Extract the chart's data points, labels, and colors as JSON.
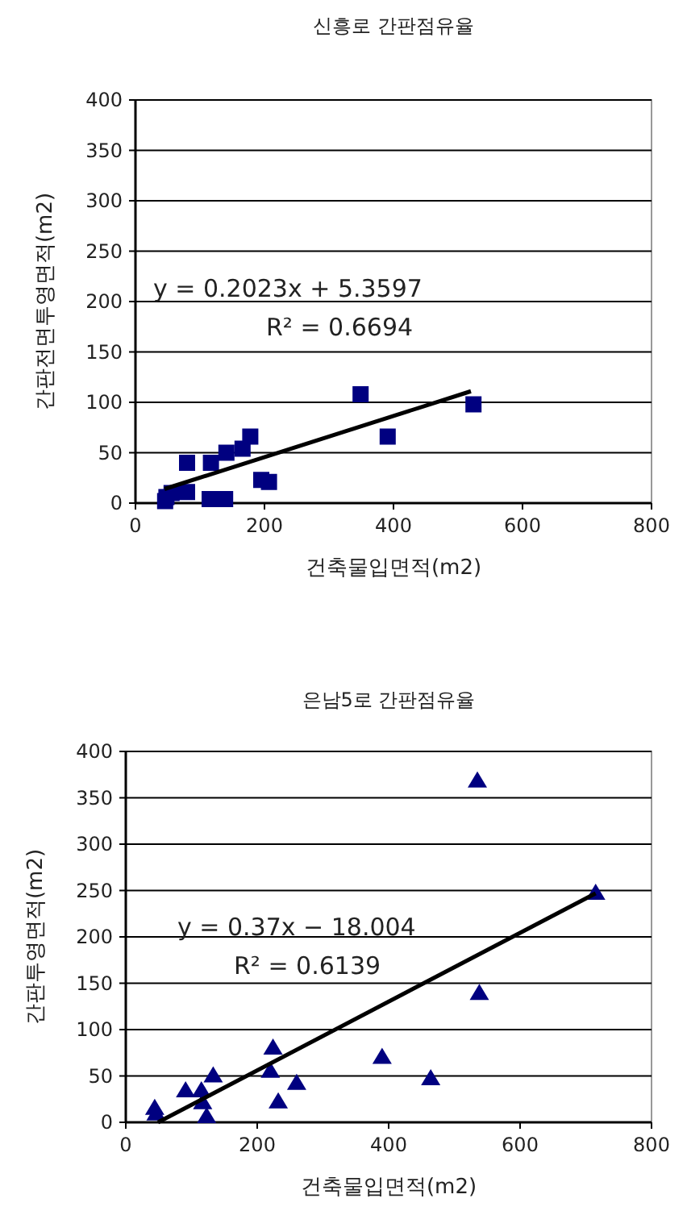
{
  "chart_data": [
    {
      "type": "scatter",
      "title": "신흥로 간판점유율",
      "xlabel": "건축물입면적(m2)",
      "ylabel": "간판전면투영면적(m2)",
      "xlim": [
        0,
        800
      ],
      "xticks": [
        0,
        200,
        400,
        600,
        800
      ],
      "ylim": [
        0,
        400
      ],
      "yticks": [
        0,
        50,
        100,
        150,
        200,
        250,
        300,
        350,
        400
      ],
      "grid": "y",
      "annotations": [
        "y  = 0.2023x + 5.3597",
        "R² = 0.6694"
      ],
      "series": [
        {
          "color": "#000080",
          "marker": "square",
          "x": [
            46,
            48,
            56,
            80,
            80,
            117,
            115,
            139,
            141,
            166,
            178,
            195,
            207,
            349,
            391,
            524
          ],
          "values": [
            2,
            6,
            10,
            11,
            40,
            40,
            4,
            4,
            50,
            54,
            66,
            23,
            21,
            108,
            66,
            98
          ]
        },
        {
          "type": "line",
          "color": "#000000",
          "marker": "none",
          "x": [
            45,
            520
          ],
          "values": [
            14,
            111
          ]
        }
      ]
    },
    {
      "type": "scatter",
      "title": "은남5로 간판점유율",
      "xlabel": "건축물입면적(m2)",
      "ylabel": "간판투영면적(m2)",
      "xlim": [
        0,
        800
      ],
      "xticks": [
        0,
        200,
        400,
        600,
        800
      ],
      "ylim": [
        0,
        400
      ],
      "yticks": [
        0,
        50,
        100,
        150,
        200,
        250,
        300,
        350,
        400
      ],
      "grid": "y",
      "annotations": [
        "y  = 0.37x  − 18.004",
        "R² = 0.6139"
      ],
      "series": [
        {
          "color": "#000080",
          "marker": "triangle",
          "x": [
            44,
            46,
            91,
            115,
            117,
            123,
            133,
            224,
            220,
            232,
            260,
            390,
            464,
            535,
            538,
            715
          ],
          "values": [
            15,
            9,
            34,
            34,
            21,
            6,
            50,
            80,
            55,
            22,
            42,
            70,
            47,
            368,
            139,
            247
          ]
        },
        {
          "type": "line",
          "color": "#000000",
          "marker": "none",
          "x": [
            49,
            715
          ],
          "values": [
            0,
            247
          ]
        }
      ]
    }
  ]
}
